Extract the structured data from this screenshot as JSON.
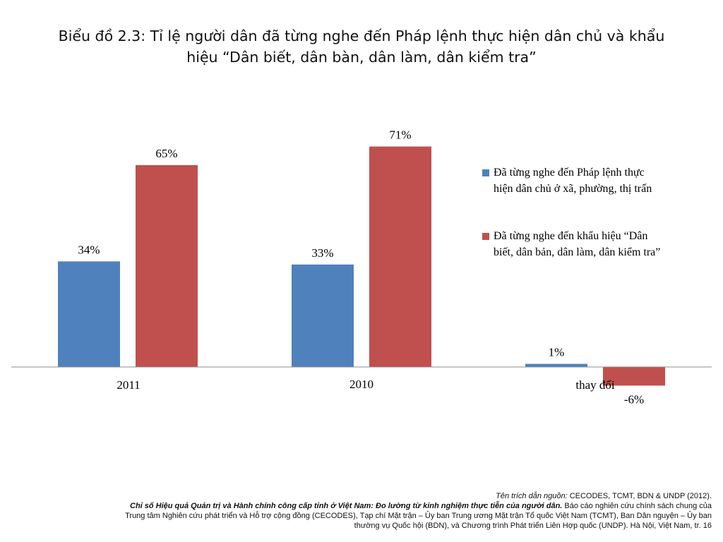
{
  "title": {
    "line1": "Biểu đồ 2.3: Tỉ lệ người dân đã từng nghe đến Pháp lệnh thực hiện dân chủ và khẩu",
    "line2": "hiệu “Dân biết, dân bàn, dân làm, dân kiểm tra”"
  },
  "chart_data": {
    "type": "bar",
    "categories": [
      "2011",
      "2010",
      "thay đổi"
    ],
    "series": [
      {
        "name": "Đã từng nghe đến Pháp lệnh thực hiện dân chủ ở xã, phường, thị trấn",
        "values": [
          34,
          33,
          1
        ],
        "labels": [
          "34%",
          "33%",
          "1%"
        ],
        "color": "#4F81BD"
      },
      {
        "name": "Đã từng nghe đến khẩu hiệu “Dân biết, dân bản, dân làm, dân kiểm tra”",
        "values": [
          65,
          71,
          -6
        ],
        "labels": [
          "65%",
          "71%",
          "-6%"
        ],
        "color": "#C0504D"
      }
    ],
    "legend": {
      "placement": "right",
      "items": [
        {
          "line1": "Đã từng nghe đến Pháp lệnh thực",
          "line2": "hiện dân chủ ở xã, phường, thị trấn",
          "color": "#4F81BD"
        },
        {
          "line1": "Đã từng nghe đến khẩu hiệu “Dân",
          "line2": "biết,  dân bản, dân làm, dân kiểm tra”",
          "color": "#C0504D"
        }
      ]
    },
    "xlabel": "",
    "ylabel": "",
    "ylim": [
      -10,
      80
    ],
    "grid": false
  },
  "footer": {
    "source_label": "Tên trích dẫn nguồn:",
    "source_text": " CECODES, TCMT, BDN & UNDP (2012).",
    "report_title": "Chỉ số Hiệu quả Quản trị và Hành chính công cấp tỉnh ở Việt Nam: Đo lường từ kinh nghiệm thực tiễn của người dân.",
    "report_desc": " Báo cáo nghiên cứu chính sách chung của",
    "line3": "Trung tâm Nghiên cứu phát triển và Hỗ trợ cộng đồng (CECODES), Tạp chí Mặt trận – Ủy ban Trung ương Mặt trận Tổ quốc Việt Nam (TCMT), Ban Dân nguyện – Ủy ban",
    "line4": "thường vụ Quốc hội (BDN), và Chương trình Phát triển Liên Hợp quốc (UNDP). Hà Nội, Việt Nam, tr. 16"
  }
}
